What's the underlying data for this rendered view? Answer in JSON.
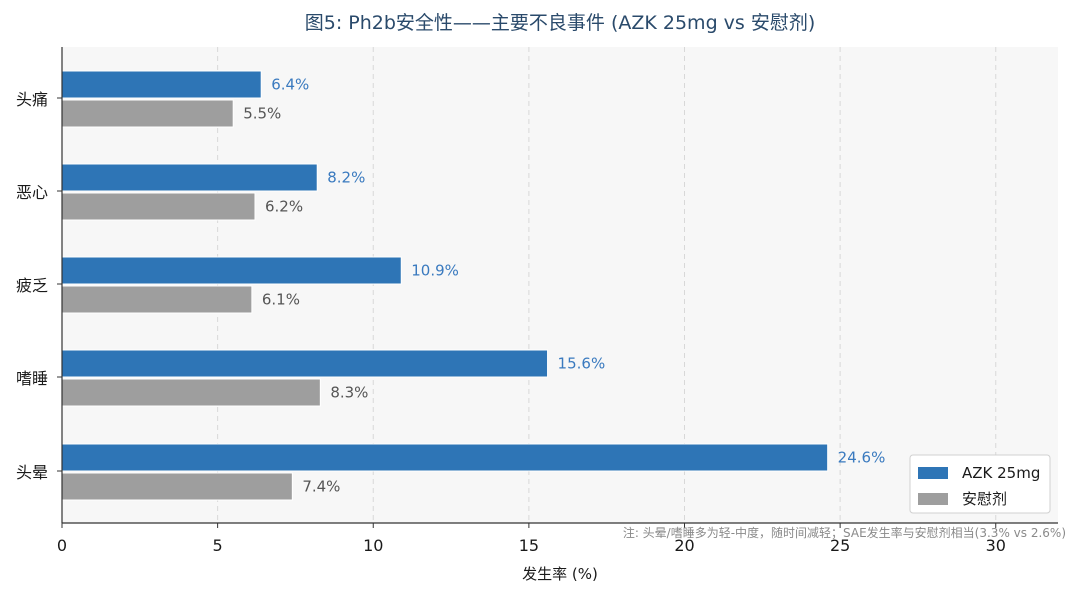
{
  "chart_data": {
    "type": "bar",
    "orientation": "horizontal",
    "title": "图5: Ph2b安全性——主要不良事件 (AZK 25mg vs 安慰剂)",
    "xlabel": "发生率 (%)",
    "ylabel": "",
    "xlim": [
      0,
      32
    ],
    "xticks": [
      0,
      5,
      10,
      15,
      20,
      25,
      30
    ],
    "grid": "vertical-dashed",
    "legend_position": "bottom-right",
    "categories": [
      "头痛",
      "恶心",
      "疲乏",
      "嗜睡",
      "头晕"
    ],
    "series": [
      {
        "name": "AZK 25mg",
        "color": "#2e75b6",
        "values": [
          6.4,
          8.2,
          10.9,
          15.6,
          24.6
        ],
        "labels": [
          "6.4%",
          "8.2%",
          "10.9%",
          "15.6%",
          "24.6%"
        ]
      },
      {
        "name": "安慰剂",
        "color": "#9e9e9e",
        "values": [
          5.5,
          6.2,
          6.1,
          8.3,
          7.4
        ],
        "labels": [
          "5.5%",
          "6.2%",
          "6.1%",
          "8.3%",
          "7.4%"
        ]
      }
    ],
    "note": "注: 头晕/嗜睡多为轻-中度，随时间减轻；SAE发生率与安慰剂相当(3.3% vs 2.6%)"
  },
  "colors": {
    "plot_background": "#f7f7f7",
    "title": "#2a4a6b",
    "grid": "#d8d8d8",
    "axis": "#333333"
  }
}
